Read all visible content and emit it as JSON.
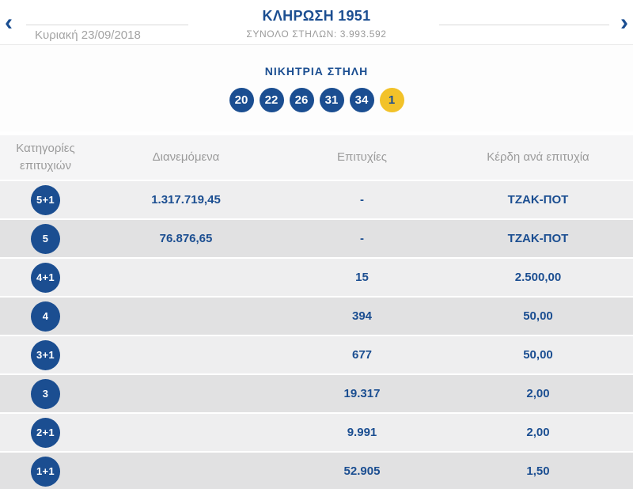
{
  "colors": {
    "primary_blue": "#1b4e91",
    "joker_yellow": "#f2c229",
    "muted_gray_text": "#9b9b9b",
    "row_light": "#eeeeef",
    "row_dark": "#e1e1e2",
    "table_header_bg": "#f5f5f6"
  },
  "header": {
    "title": "ΚΛΗΡΩΣΗ 1951",
    "subtitle": "ΣΥΝΟΛΟ ΣΤΗΛΩΝ: 3.993.592",
    "date": "Κυριακή 23/09/2018",
    "icons": {
      "prev": "‹",
      "next": "›"
    }
  },
  "winning": {
    "label": "ΝΙΚΗΤΡΙΑ ΣΤΗΛΗ",
    "numbers": [
      "20",
      "22",
      "26",
      "31",
      "34"
    ],
    "joker": "1"
  },
  "table": {
    "headers": [
      "Κατηγορίες επιτυχιών",
      "Διανεμόμενα",
      "Επιτυχίες",
      "Κέρδη ανά επιτυχία"
    ],
    "rows": [
      {
        "category": "5+1",
        "distributed": "1.317.719,45",
        "wins": "-",
        "prize": "ΤΖΑΚ-ΠΟΤ"
      },
      {
        "category": "5",
        "distributed": "76.876,65",
        "wins": "-",
        "prize": "ΤΖΑΚ-ΠΟΤ"
      },
      {
        "category": "4+1",
        "distributed": "",
        "wins": "15",
        "prize": "2.500,00"
      },
      {
        "category": "4",
        "distributed": "",
        "wins": "394",
        "prize": "50,00"
      },
      {
        "category": "3+1",
        "distributed": "",
        "wins": "677",
        "prize": "50,00"
      },
      {
        "category": "3",
        "distributed": "",
        "wins": "19.317",
        "prize": "2,00"
      },
      {
        "category": "2+1",
        "distributed": "",
        "wins": "9.991",
        "prize": "2,00"
      },
      {
        "category": "1+1",
        "distributed": "",
        "wins": "52.905",
        "prize": "1,50"
      }
    ]
  }
}
